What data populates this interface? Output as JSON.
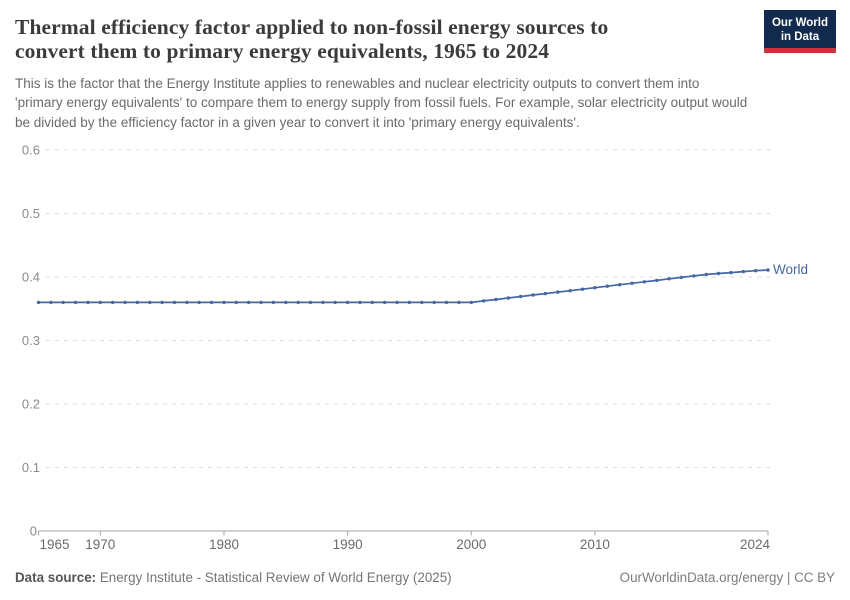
{
  "header": {
    "title_lines": [
      "Thermal efficiency factor applied to non-fossil energy sources to",
      "convert them to primary energy equivalents, 1965 to 2024"
    ],
    "subtitle_lines": [
      "This is the factor that the Energy Institute applies to renewables and nuclear electricity outputs to convert them into",
      "'primary energy equivalents' to compare them to energy supply from fossil fuels. For example, solar electricity output would",
      "be divided by the efficiency factor in a given year to convert it into 'primary energy equivalents'."
    ],
    "logo": {
      "line1": "Our World",
      "line2": "in Data",
      "bg_color": "#122a4e",
      "accent_color": "#c6363c"
    }
  },
  "chart_data": {
    "type": "line",
    "title": "Thermal efficiency factor applied to non-fossil energy sources to convert them to primary energy equivalents, 1965 to 2024",
    "x": [
      1965,
      1966,
      1967,
      1968,
      1969,
      1970,
      1971,
      1972,
      1973,
      1974,
      1975,
      1976,
      1977,
      1978,
      1979,
      1980,
      1981,
      1982,
      1983,
      1984,
      1985,
      1986,
      1987,
      1988,
      1989,
      1990,
      1991,
      1992,
      1993,
      1994,
      1995,
      1996,
      1997,
      1998,
      1999,
      2000,
      2001,
      2002,
      2003,
      2004,
      2005,
      2006,
      2007,
      2008,
      2009,
      2010,
      2011,
      2012,
      2013,
      2014,
      2015,
      2016,
      2017,
      2018,
      2019,
      2020,
      2021,
      2022,
      2023,
      2024
    ],
    "series": [
      {
        "name": "World",
        "color": "#4468a4",
        "values": [
          0.36,
          0.36,
          0.36,
          0.36,
          0.36,
          0.36,
          0.36,
          0.36,
          0.36,
          0.36,
          0.36,
          0.36,
          0.36,
          0.36,
          0.36,
          0.36,
          0.36,
          0.36,
          0.36,
          0.36,
          0.36,
          0.36,
          0.36,
          0.36,
          0.36,
          0.36,
          0.36,
          0.36,
          0.36,
          0.36,
          0.36,
          0.36,
          0.36,
          0.36,
          0.36,
          0.36,
          0.3623,
          0.3646,
          0.3669,
          0.3693,
          0.3716,
          0.3739,
          0.3762,
          0.3785,
          0.3808,
          0.3832,
          0.3855,
          0.3878,
          0.3901,
          0.3924,
          0.3947,
          0.3971,
          0.3994,
          0.4017,
          0.404,
          0.4055,
          0.407,
          0.4085,
          0.41,
          0.411
        ]
      }
    ],
    "xlim": [
      1965,
      2024
    ],
    "ylim": [
      0,
      0.6
    ],
    "y_ticks": [
      0,
      0.1,
      0.2,
      0.3,
      0.4,
      0.5,
      0.6
    ],
    "y_tick_labels": [
      "0",
      "0.1",
      "0.2",
      "0.3",
      "0.4",
      "0.5",
      "0.6"
    ],
    "x_ticks": [
      1965,
      1970,
      1980,
      1990,
      2000,
      2010,
      2024
    ],
    "grid": "horizontal dashed",
    "legend": "end-of-line entity label",
    "colors": {
      "grid": "#dedede",
      "axis": "#a6a6a6",
      "y_label": "#8a8a8a",
      "x_label": "#6b6b6b"
    }
  },
  "footer": {
    "source_label": "Data source:",
    "source_text": " Energy Institute - Statistical Review of World Energy (2025)",
    "credit": "OurWorldinData.org/energy | CC BY"
  }
}
